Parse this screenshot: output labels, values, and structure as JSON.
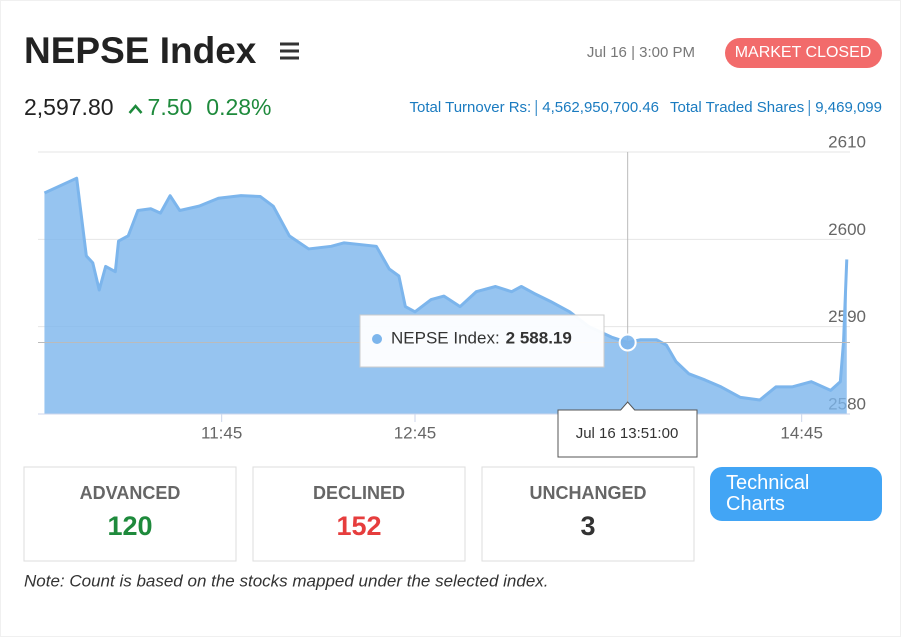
{
  "header": {
    "title": "NEPSE Index",
    "datetime": "Jul 16 | 3:00 PM",
    "status": "MARKET CLOSED"
  },
  "summary": {
    "index_value": "2,597.80",
    "change": "7.50",
    "change_percent": "0.28%",
    "turnover_label": "Total Turnover Rs:",
    "turnover_value": "4,562,950,700.46",
    "shares_label": "Total Traded Shares",
    "shares_value": "9,469,099"
  },
  "chart_data": {
    "type": "area",
    "color": "#7cb5ec",
    "grid": true,
    "x": [
      "10:50",
      "11:00",
      "11:03",
      "11:05",
      "11:07",
      "11:09",
      "11:12",
      "11:13",
      "11:16",
      "11:19",
      "11:23",
      "11:26",
      "11:29",
      "11:32",
      "11:38",
      "11:44",
      "11:51",
      "11:57",
      "12:01",
      "12:06",
      "12:12",
      "12:19",
      "12:23",
      "12:33",
      "12:37",
      "12:40",
      "12:42",
      "12:45",
      "12:50",
      "12:54",
      "12:59",
      "13:04",
      "13:10",
      "13:15",
      "13:18",
      "13:22",
      "13:27",
      "13:33",
      "13:39",
      "13:46",
      "13:51",
      "13:55",
      "14:00",
      "14:03",
      "14:06",
      "14:10",
      "14:15",
      "14:20",
      "14:26",
      "14:32",
      "14:37",
      "14:42",
      "14:48",
      "14:54",
      "14:57",
      "14:58",
      "14:59"
    ],
    "values": [
      2605.3,
      2607.0,
      2598.1,
      2597.3,
      2594.2,
      2596.9,
      2596.3,
      2599.8,
      2600.4,
      2603.3,
      2603.5,
      2603.0,
      2605.0,
      2603.3,
      2603.8,
      2604.7,
      2605.0,
      2604.9,
      2603.8,
      2600.4,
      2598.9,
      2599.2,
      2599.6,
      2599.2,
      2596.6,
      2595.8,
      2592.3,
      2591.7,
      2593.1,
      2593.5,
      2592.3,
      2594.0,
      2594.6,
      2594.0,
      2594.6,
      2593.8,
      2592.9,
      2591.7,
      2590.0,
      2588.8,
      2588.19,
      2588.5,
      2588.5,
      2587.9,
      2586.0,
      2584.6,
      2583.9,
      2583.1,
      2581.9,
      2581.6,
      2583.1,
      2583.1,
      2583.7,
      2582.7,
      2583.7,
      2588.3,
      2597.7
    ],
    "xlim": [
      "10:48",
      "15:00"
    ],
    "xticks": [
      "11:45",
      "12:45",
      "14:45"
    ],
    "ylim": [
      2580,
      2610
    ],
    "yticks": [
      2580,
      2590,
      2600,
      2610
    ],
    "tooltip": {
      "x": "13:51",
      "y": 2588.19,
      "label": "NEPSE Index:",
      "value_label": "2 588.19",
      "x_label": "Jul 16 13:51:00"
    }
  },
  "stats": [
    {
      "label": "ADVANCED",
      "value": 120,
      "color": "#1e8a3c"
    },
    {
      "label": "DECLINED",
      "value": 152,
      "color": "#e63d3d"
    },
    {
      "label": "UNCHANGED",
      "value": 3,
      "color": "#333333"
    }
  ],
  "button": "Technical Charts",
  "note": "Note: Count is based on the stocks mapped under the selected index."
}
